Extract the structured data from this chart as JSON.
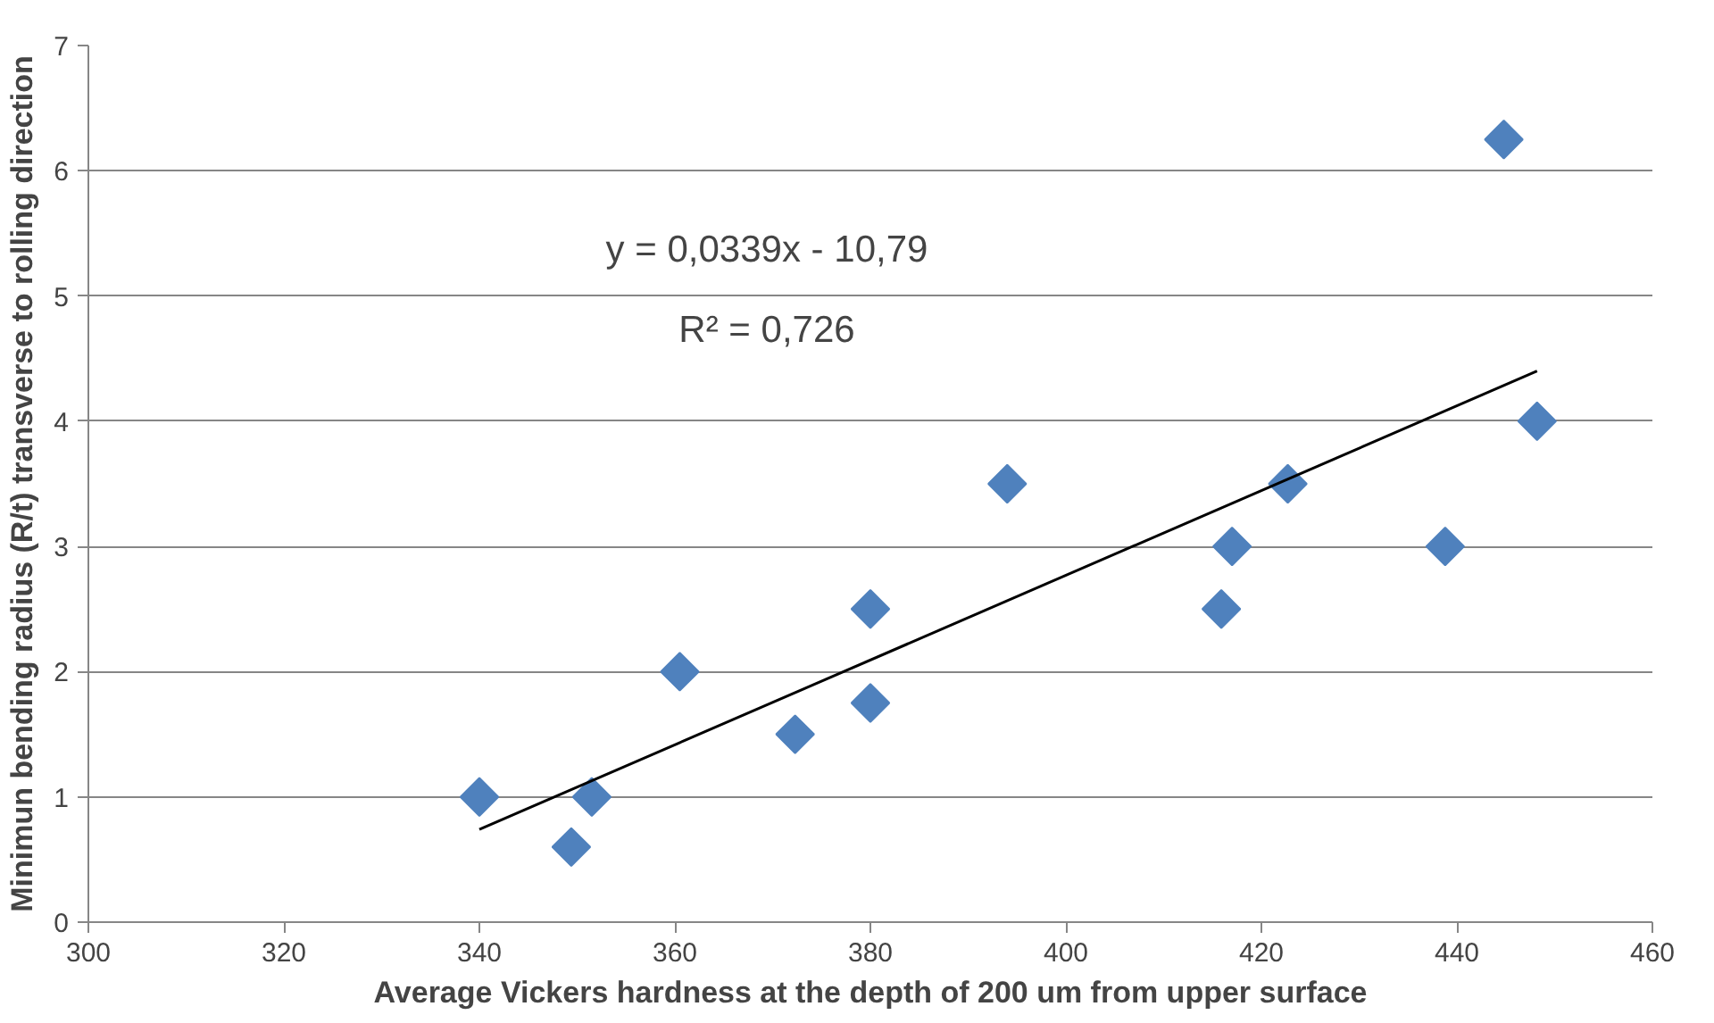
{
  "chart_data": {
    "type": "scatter",
    "xlabel": "Average Vickers hardness at the depth of 200 um from upper surface",
    "ylabel": "Minimun bending radius (R/t) transverse to rolling direction",
    "series": [
      {
        "color": "#4f81bd",
        "marker": "diamond",
        "x": [
          340,
          349.4,
          351.5,
          360.5,
          372.3,
          380,
          380,
          394,
          415.9,
          417,
          422.7,
          438.8,
          444.8,
          448.2
        ],
        "values": [
          1,
          0.6,
          1,
          2,
          1.5,
          2.5,
          1.75,
          3.5,
          2.5,
          3,
          3.5,
          3,
          6.25,
          4
        ]
      },
      {
        "type": "line",
        "color": "#000000",
        "x": [
          340,
          448.2
        ],
        "values": [
          0.74,
          4.4
        ]
      }
    ],
    "annotations": [
      "y = 0,0339x - 10,79",
      "R² = 0,726"
    ],
    "xlim": [
      300,
      460
    ],
    "xticks": [
      300,
      320,
      340,
      360,
      380,
      400,
      420,
      440,
      460
    ],
    "ylim": [
      0,
      7
    ],
    "yticks": [
      0,
      1,
      2,
      3,
      4,
      5,
      6,
      7
    ],
    "grid": "y"
  }
}
